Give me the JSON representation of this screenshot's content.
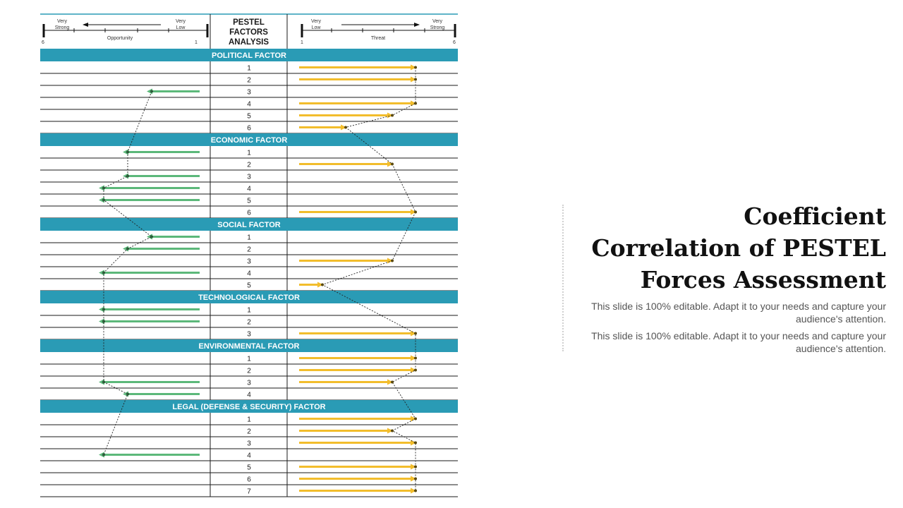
{
  "header": {
    "left_very_strong": [
      "Very",
      "Strong"
    ],
    "left_very_low": [
      "Very",
      "Low"
    ],
    "left_caption": "Opportunity",
    "left_scale_min": "6",
    "left_scale_max": "1",
    "center_title": [
      "PESTEL",
      "FACTORS",
      "ANALYSIS"
    ],
    "right_very_low": [
      "Very",
      "Low"
    ],
    "right_very_strong": [
      "Very",
      "Strong"
    ],
    "right_caption": "Threat",
    "right_scale_min": "1",
    "right_scale_max": "6"
  },
  "colors": {
    "section_band": "#2a9bb5",
    "opportunity_arrow": "#5cb87a",
    "threat_arrow": "#f2bd2c",
    "grid_line": "#1a1a1a"
  },
  "sections": [
    {
      "title": "POLITICAL FACTOR",
      "rows": [
        {
          "n": "1",
          "opportunity": null,
          "threat": 6
        },
        {
          "n": "2",
          "opportunity": null,
          "threat": 6
        },
        {
          "n": "3",
          "opportunity": 3,
          "threat": null
        },
        {
          "n": "4",
          "opportunity": null,
          "threat": 6
        },
        {
          "n": "5",
          "opportunity": null,
          "threat": 5
        },
        {
          "n": "6",
          "opportunity": null,
          "threat": 3
        }
      ]
    },
    {
      "title": "ECONOMIC FACTOR",
      "rows": [
        {
          "n": "1",
          "opportunity": 4,
          "threat": null
        },
        {
          "n": "2",
          "opportunity": null,
          "threat": 5
        },
        {
          "n": "3",
          "opportunity": 4,
          "threat": null
        },
        {
          "n": "4",
          "opportunity": 5,
          "threat": null
        },
        {
          "n": "5",
          "opportunity": 5,
          "threat": null
        },
        {
          "n": "6",
          "opportunity": null,
          "threat": 6
        }
      ]
    },
    {
      "title": "SOCIAL FACTOR",
      "rows": [
        {
          "n": "1",
          "opportunity": 3,
          "threat": null
        },
        {
          "n": "2",
          "opportunity": 4,
          "threat": null
        },
        {
          "n": "3",
          "opportunity": null,
          "threat": 5
        },
        {
          "n": "4",
          "opportunity": 5,
          "threat": null
        },
        {
          "n": "5",
          "opportunity": null,
          "threat": 2
        }
      ]
    },
    {
      "title": "TECHNOLOGICAL FACTOR",
      "rows": [
        {
          "n": "1",
          "opportunity": 5,
          "threat": null
        },
        {
          "n": "2",
          "opportunity": 5,
          "threat": null
        },
        {
          "n": "3",
          "opportunity": null,
          "threat": 6
        }
      ]
    },
    {
      "title": "ENVIRONMENTAL FACTOR",
      "rows": [
        {
          "n": "1",
          "opportunity": null,
          "threat": 6
        },
        {
          "n": "2",
          "opportunity": null,
          "threat": 6
        },
        {
          "n": "3",
          "opportunity": 5,
          "threat": 5
        },
        {
          "n": "4",
          "opportunity": 4,
          "threat": null
        }
      ]
    },
    {
      "title": "LEGAL (DEFENSE & SECURITY) FACTOR",
      "rows": [
        {
          "n": "1",
          "opportunity": null,
          "threat": 6
        },
        {
          "n": "2",
          "opportunity": null,
          "threat": 5
        },
        {
          "n": "3",
          "opportunity": null,
          "threat": 6
        },
        {
          "n": "4",
          "opportunity": 5,
          "threat": null
        },
        {
          "n": "5",
          "opportunity": null,
          "threat": 6
        },
        {
          "n": "6",
          "opportunity": null,
          "threat": 6
        },
        {
          "n": "7",
          "opportunity": null,
          "threat": 6
        }
      ]
    }
  ],
  "title_lines": [
    "Coefficient",
    "Correlation of PESTEL",
    "Forces Assessment"
  ],
  "descriptions": [
    "This slide is 100% editable. Adapt it to your needs and capture your audience's attention.",
    "This slide is 100% editable. Adapt it to your needs and capture your audience's attention."
  ]
}
